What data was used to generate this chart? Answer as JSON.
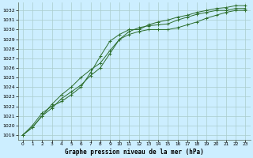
{
  "title": "Graphe pression niveau de la mer (hPa)",
  "bg_color": "#cceeff",
  "grid_color": "#aacccc",
  "line_color": "#2d6e2d",
  "xlim": [
    -0.5,
    23.5
  ],
  "ylim": [
    1018.5,
    1032.8
  ],
  "xticks": [
    0,
    1,
    2,
    3,
    4,
    5,
    6,
    7,
    8,
    9,
    10,
    11,
    12,
    13,
    14,
    15,
    16,
    17,
    18,
    19,
    20,
    21,
    22,
    23
  ],
  "yticks": [
    1019,
    1020,
    1021,
    1022,
    1023,
    1024,
    1025,
    1026,
    1027,
    1028,
    1029,
    1030,
    1031,
    1032
  ],
  "series1_x": [
    0,
    1,
    2,
    3,
    4,
    5,
    6,
    7,
    8,
    9,
    10,
    11,
    12,
    13,
    14,
    15,
    16,
    17,
    18,
    19,
    20,
    21,
    22,
    23
  ],
  "series1_y": [
    1019.0,
    1019.8,
    1021.0,
    1021.8,
    1022.8,
    1023.5,
    1024.2,
    1025.2,
    1026.0,
    1027.5,
    1029.0,
    1029.5,
    1029.8,
    1030.0,
    1030.0,
    1030.0,
    1030.2,
    1030.5,
    1030.8,
    1031.2,
    1031.5,
    1031.8,
    1032.0,
    1032.0
  ],
  "series2_x": [
    0,
    1,
    2,
    3,
    4,
    5,
    6,
    7,
    8,
    9,
    10,
    11,
    12,
    13,
    14,
    15,
    16,
    17,
    18,
    19,
    20,
    21,
    22,
    23
  ],
  "series2_y": [
    1019.0,
    1019.8,
    1021.0,
    1022.2,
    1023.2,
    1024.0,
    1025.0,
    1025.8,
    1026.5,
    1027.8,
    1029.0,
    1029.8,
    1030.2,
    1030.4,
    1030.5,
    1030.6,
    1031.0,
    1031.3,
    1031.6,
    1031.8,
    1032.0,
    1032.0,
    1032.2,
    1032.2
  ],
  "series3_x": [
    0,
    1,
    2,
    3,
    4,
    5,
    6,
    7,
    8,
    9,
    10,
    11,
    12,
    13,
    14,
    15,
    16,
    17,
    18,
    19,
    20,
    21,
    22,
    23
  ],
  "series3_y": [
    1019.0,
    1020.0,
    1021.3,
    1022.0,
    1022.5,
    1023.2,
    1024.0,
    1025.5,
    1027.2,
    1028.8,
    1029.5,
    1030.0,
    1030.0,
    1030.5,
    1030.8,
    1031.0,
    1031.3,
    1031.5,
    1031.8,
    1032.0,
    1032.2,
    1032.3,
    1032.5,
    1032.5
  ]
}
